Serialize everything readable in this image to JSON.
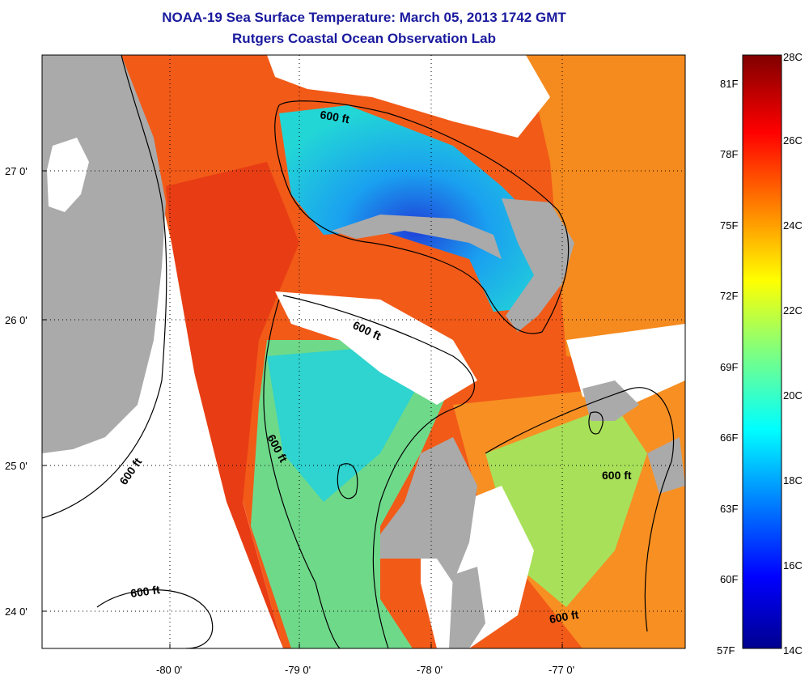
{
  "header": {
    "title": "NOAA-19 Sea Surface Temperature:  March 05, 2013 1742 GMT",
    "subtitle": "Rutgers Coastal Ocean Observation Lab"
  },
  "map": {
    "lon_ticks": [
      "-80 0'",
      "-79 0'",
      "-78 0'",
      "-77 0'"
    ],
    "lat_ticks": [
      "27 0'",
      "26 0'",
      "25 0'",
      "24 0'"
    ],
    "contour_labels": [
      "600 ft",
      "600 ft",
      "600 ft",
      "600 ft",
      "600 ft",
      "600 ft"
    ],
    "colors": {
      "land": "#aaaaaa",
      "cloud": "#ffffff",
      "grid": "#000000"
    }
  },
  "colorbar": {
    "celsius_labels": [
      "28C",
      "26C",
      "24C",
      "22C",
      "20C",
      "18C",
      "16C",
      "14C"
    ],
    "fahrenheit_labels": [
      "81F",
      "78F",
      "75F",
      "72F",
      "69F",
      "66F",
      "63F",
      "60F",
      "57F"
    ],
    "range_c": [
      14,
      28
    ]
  }
}
